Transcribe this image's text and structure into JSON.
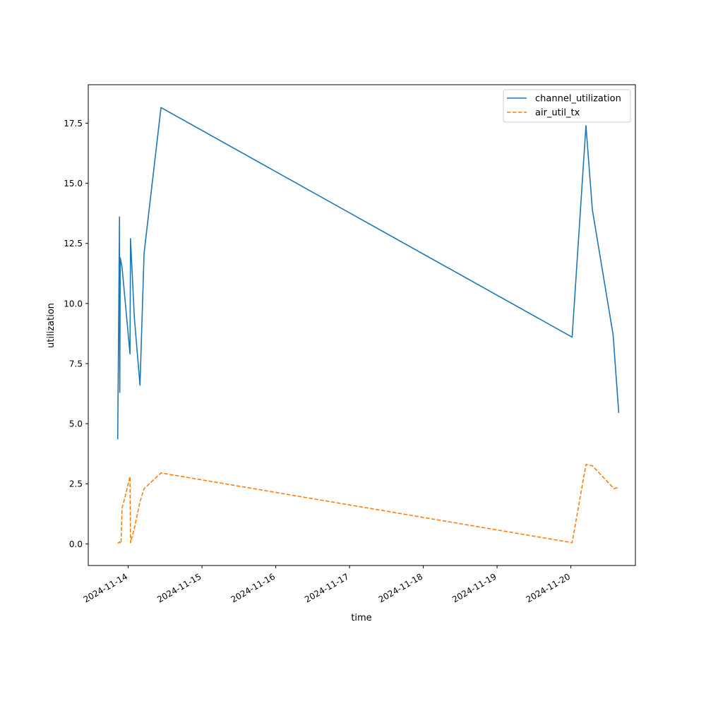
{
  "chart_data": {
    "type": "line",
    "title": "",
    "xlabel": "time",
    "ylabel": "utilization",
    "x_ticks": [
      "2024-11-14",
      "2024-11-15",
      "2024-11-16",
      "2024-11-17",
      "2024-11-18",
      "2024-11-19",
      "2024-11-20"
    ],
    "y_ticks": [
      0.0,
      2.5,
      5.0,
      7.5,
      10.0,
      12.5,
      15.0,
      17.5
    ],
    "y_tick_labels": [
      "0.0",
      "2.5",
      "5.0",
      "7.5",
      "10.0",
      "12.5",
      "15.0",
      "17.5"
    ],
    "xlim": [
      "2024-11-13 11:00",
      "2024-11-20 21:00"
    ],
    "ylim": [
      -0.9,
      19.1
    ],
    "grid": false,
    "legend_position": "top-right",
    "series": [
      {
        "name": "channel_utilization",
        "color": "#1f77b4",
        "style": "solid",
        "points": [
          [
            "2024-11-13 20:35",
            4.35
          ],
          [
            "2024-11-13 21:10",
            13.6
          ],
          [
            "2024-11-13 21:15",
            6.3
          ],
          [
            "2024-11-13 21:25",
            11.9
          ],
          [
            "2024-11-13 22:00",
            11.5
          ],
          [
            "2024-11-14 00:35",
            7.9
          ],
          [
            "2024-11-14 00:45",
            12.7
          ],
          [
            "2024-11-14 02:00",
            9.4
          ],
          [
            "2024-11-14 03:50",
            6.6
          ],
          [
            "2024-11-14 05:10",
            12.1
          ],
          [
            "2024-11-14 10:40",
            18.15
          ],
          [
            "2024-11-20 00:25",
            8.6
          ],
          [
            "2024-11-20 04:55",
            17.4
          ],
          [
            "2024-11-20 07:00",
            13.9
          ],
          [
            "2024-11-20 13:45",
            8.7
          ],
          [
            "2024-11-20 15:35",
            5.45
          ]
        ]
      },
      {
        "name": "air_util_tx",
        "color": "#ff7f0e",
        "style": "dashed",
        "points": [
          [
            "2024-11-13 20:35",
            0.02
          ],
          [
            "2024-11-13 21:10",
            0.08
          ],
          [
            "2024-11-13 21:40",
            0.02
          ],
          [
            "2024-11-13 22:00",
            1.5
          ],
          [
            "2024-11-13 22:40",
            1.8
          ],
          [
            "2024-11-14 00:35",
            2.8
          ],
          [
            "2024-11-14 00:45",
            0.05
          ],
          [
            "2024-11-14 02:00",
            0.65
          ],
          [
            "2024-11-14 03:50",
            1.75
          ],
          [
            "2024-11-14 05:10",
            2.3
          ],
          [
            "2024-11-14 10:40",
            2.95
          ],
          [
            "2024-11-20 00:25",
            0.05
          ],
          [
            "2024-11-20 04:55",
            3.3
          ],
          [
            "2024-11-20 07:00",
            3.25
          ],
          [
            "2024-11-20 14:00",
            2.3
          ],
          [
            "2024-11-20 15:35",
            2.35
          ]
        ]
      }
    ]
  }
}
